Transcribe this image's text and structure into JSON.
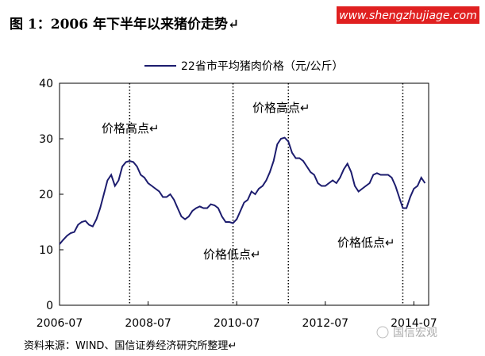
{
  "title": "图 1：2006 年下半年以来猪价走势↵",
  "watermark_top": "www.shengzhujiage.com",
  "source": "资料来源：WIND、国信证券经济研究所整理↵",
  "watermark_bottom": "国信宏观",
  "chart_data": {
    "type": "line",
    "x": [
      "2006-07",
      "2006-08",
      "2006-09",
      "2006-10",
      "2006-11",
      "2006-12",
      "2007-01",
      "2007-02",
      "2007-03",
      "2007-04",
      "2007-05",
      "2007-06",
      "2007-07",
      "2007-08",
      "2007-09",
      "2007-10",
      "2007-11",
      "2007-12",
      "2008-01",
      "2008-02",
      "2008-03",
      "2008-04",
      "2008-05",
      "2008-06",
      "2008-07",
      "2008-08",
      "2008-09",
      "2008-10",
      "2008-11",
      "2008-12",
      "2009-01",
      "2009-02",
      "2009-03",
      "2009-04",
      "2009-05",
      "2009-06",
      "2009-07",
      "2009-08",
      "2009-09",
      "2009-10",
      "2009-11",
      "2009-12",
      "2010-01",
      "2010-02",
      "2010-03",
      "2010-04",
      "2010-05",
      "2010-06",
      "2010-07",
      "2010-08",
      "2010-09",
      "2010-10",
      "2010-11",
      "2010-12",
      "2011-01",
      "2011-02",
      "2011-03",
      "2011-04",
      "2011-05",
      "2011-06",
      "2011-07",
      "2011-08",
      "2011-09",
      "2011-10",
      "2011-11",
      "2011-12",
      "2012-01",
      "2012-02",
      "2012-03",
      "2012-04",
      "2012-05",
      "2012-06",
      "2012-07",
      "2012-08",
      "2012-09",
      "2012-10",
      "2012-11",
      "2012-12",
      "2013-01",
      "2013-02",
      "2013-03",
      "2013-04",
      "2013-05",
      "2013-06",
      "2013-07",
      "2013-08",
      "2013-09",
      "2013-10",
      "2013-11",
      "2013-12",
      "2014-01",
      "2014-02",
      "2014-03",
      "2014-04",
      "2014-05",
      "2014-06",
      "2014-07",
      "2014-08",
      "2014-09",
      "2014-10"
    ],
    "series": [
      {
        "name": "22省市平均猪肉价格（元/公斤）",
        "color": "#1c1c6e",
        "values": [
          11,
          11.8,
          12.5,
          13,
          13.2,
          14.5,
          15,
          15.2,
          14.5,
          14.2,
          15.5,
          17.5,
          20,
          22.5,
          23.5,
          21.5,
          22.5,
          25,
          25.8,
          26,
          25.8,
          25,
          23.5,
          23,
          22,
          21.5,
          21,
          20.5,
          19.5,
          19.5,
          20,
          19,
          17.5,
          16,
          15.5,
          16,
          17,
          17.5,
          17.8,
          17.5,
          17.5,
          18.2,
          18,
          17.5,
          16,
          15,
          15,
          14.8,
          15.5,
          17,
          18.5,
          19,
          20.5,
          20,
          21,
          21.5,
          22.5,
          24,
          26,
          29,
          30,
          30.2,
          29.5,
          27.5,
          26.5,
          26.5,
          26,
          25,
          24,
          23.5,
          22,
          21.5,
          21.5,
          22,
          22.5,
          22,
          23,
          24.5,
          25.5,
          24,
          21.5,
          20.5,
          21,
          21.5,
          22,
          23.5,
          23.8,
          23.5,
          23.5,
          23.5,
          23,
          21.5,
          19.5,
          17.5,
          17.5,
          19.5,
          21,
          21.5,
          23,
          22
        ]
      }
    ],
    "xlim": [
      "2006-07",
      "2014-11"
    ],
    "xticks": [
      "2006-07",
      "2008-07",
      "2010-07",
      "2012-07",
      "2014-07"
    ],
    "ylim": [
      0,
      40
    ],
    "yticks": [
      0,
      10,
      20,
      30,
      40
    ],
    "reference_lines": [
      "2008-02",
      "2010-06",
      "2011-09",
      "2014-04"
    ],
    "annotations": [
      "价格高点↵",
      "价格高点↵",
      "价格低点↵",
      "价格低点↵"
    ]
  }
}
